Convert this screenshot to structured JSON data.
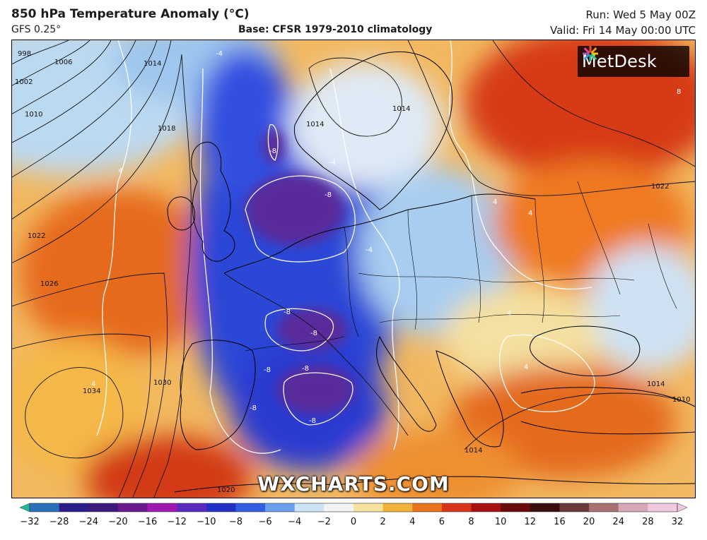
{
  "header": {
    "title": "850 hPa Temperature Anomaly (°C)",
    "model": "GFS 0.25°",
    "base": "Base: CFSR 1979-2010 climatology",
    "run": "Run: Wed 5 May 00Z",
    "valid": "Valid: Fri 14 May 00:00 UTC"
  },
  "logo": {
    "text": "MetDesk"
  },
  "watermark": "WXCHARTS.COM",
  "legend": {
    "ticks": [
      "−32",
      "−28",
      "−24",
      "−20",
      "−16",
      "−12",
      "−10",
      "−8",
      "−6",
      "−4",
      "−2",
      "0",
      "2",
      "4",
      "6",
      "8",
      "10",
      "12",
      "16",
      "20",
      "24",
      "28",
      "32"
    ],
    "colors": [
      "#1fb89a",
      "#2a6fb8",
      "#2a1f8a",
      "#3d1a7a",
      "#6a1a8e",
      "#a018b0",
      "#5a2ac0",
      "#2230c8",
      "#2f5fe0",
      "#6aa0ee",
      "#cde3f6",
      "#f3f3f3",
      "#f7e2a0",
      "#f2b23a",
      "#e8731a",
      "#d8341a",
      "#a81010",
      "#6a0a0a",
      "#3a0c0c",
      "#6a3a3a",
      "#a87070",
      "#d8a8b8",
      "#f0c8e0"
    ]
  },
  "isobars": [
    "998",
    "1002",
    "1006",
    "1010",
    "1014",
    "1018",
    "1022",
    "1026",
    "1030",
    "1034",
    "1014",
    "1022",
    "1014",
    "1010",
    "1014",
    "1020",
    "1014"
  ],
  "anomaly_labels": [
    "-8",
    "-8",
    "-8",
    "-8",
    "-8",
    "-8",
    "-8",
    "-4",
    "-4",
    "4",
    "4",
    "4",
    "4",
    "4",
    "4",
    "8",
    "-4",
    "-8"
  ]
}
